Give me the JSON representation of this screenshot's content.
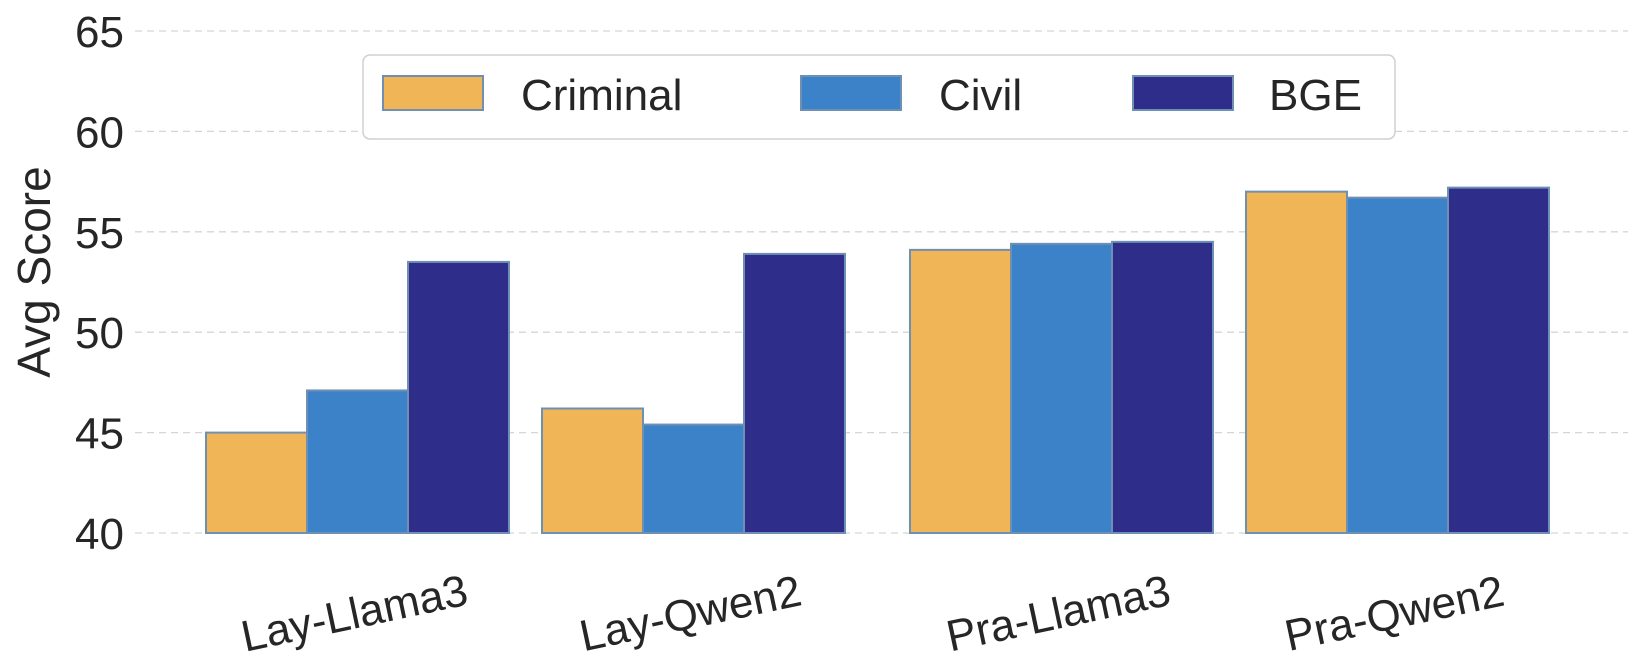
{
  "chart_data": {
    "type": "bar",
    "categories": [
      "Lay-Llama3",
      "Lay-Qwen2",
      "Pra-Llama3",
      "Pra-Qwen2"
    ],
    "series": [
      {
        "name": "Criminal",
        "color": "#F0B557",
        "values": [
          45.0,
          46.2,
          54.1,
          57.0
        ]
      },
      {
        "name": "Civil",
        "color": "#3B82C8",
        "values": [
          47.1,
          45.4,
          54.4,
          56.7
        ]
      },
      {
        "name": "BGE",
        "color": "#2E2E8A",
        "values": [
          53.5,
          53.9,
          54.5,
          57.2
        ]
      }
    ],
    "ylabel": "Avg Score",
    "xlabel": "",
    "ylim": [
      40,
      65
    ],
    "yticks": [
      "40",
      "45",
      "50",
      "55",
      "60",
      "65"
    ],
    "grid": true,
    "legend_position": "top-center"
  }
}
